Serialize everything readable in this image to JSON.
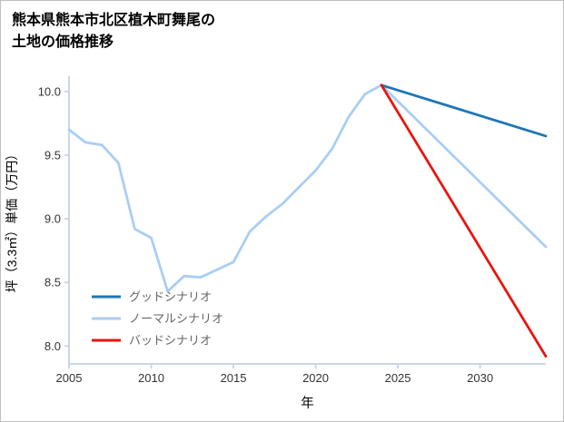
{
  "page": {
    "title_line1": "熊本県熊本市北区植木町舞尾の",
    "title_line2": "土地の価格推移"
  },
  "chart_data": {
    "type": "line",
    "title": "熊本県熊本市北区植木町舞尾の土地の価格推移",
    "xlabel": "年",
    "ylabel": "坪（3.3㎡）単価（万円）",
    "xlim": [
      2005,
      2034
    ],
    "ylim": [
      7.86,
      10.12
    ],
    "xticks": [
      2005,
      2010,
      2015,
      2020,
      2025,
      2030
    ],
    "yticks": [
      8.0,
      8.5,
      9.0,
      9.5,
      10.0
    ],
    "grid": false,
    "legend_position": "lower left",
    "colors": {
      "axis": "#c9d6ea",
      "tick_label": "#333333",
      "axis_label": "#000000",
      "legend_text": "#666666",
      "background": "#ffffff"
    },
    "series": [
      {
        "name": "グッドシナリオ",
        "color": "#1f76b4",
        "x": [
          2024,
          2034
        ],
        "y": [
          10.05,
          9.65
        ]
      },
      {
        "name": "ノーマルシナリオ",
        "color": "#a9cef4",
        "x": [
          2005,
          2006,
          2007,
          2008,
          2009,
          2010,
          2011,
          2012,
          2013,
          2014,
          2015,
          2016,
          2017,
          2018,
          2019,
          2020,
          2021,
          2022,
          2023,
          2024,
          2034
        ],
        "y": [
          9.7,
          9.6,
          9.58,
          9.44,
          8.92,
          8.85,
          8.43,
          8.55,
          8.54,
          8.6,
          8.66,
          8.9,
          9.02,
          9.12,
          9.25,
          9.38,
          9.55,
          9.8,
          9.98,
          10.05,
          8.78
        ]
      },
      {
        "name": "バッドシナリオ",
        "color": "#e8160f",
        "x": [
          2024,
          2034
        ],
        "y": [
          10.05,
          7.92
        ]
      }
    ]
  }
}
